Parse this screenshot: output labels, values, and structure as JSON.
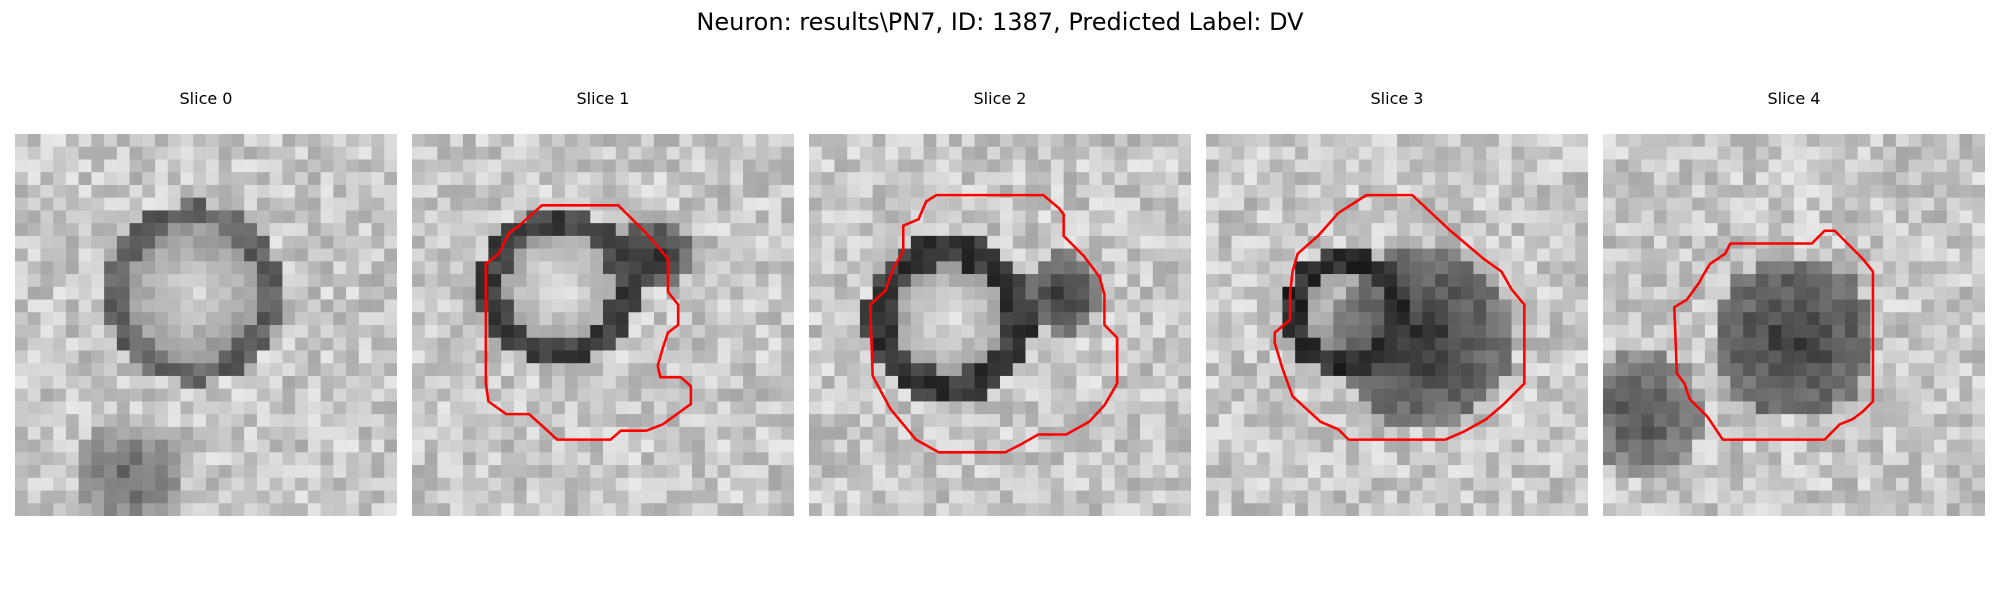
{
  "figure": {
    "title": "Neuron: results\\PN7, ID: 1387, Predicted Label: DV"
  },
  "panels": [
    {
      "title": "Slice 0",
      "has_contour": false,
      "features": [
        {
          "kind": "ring",
          "fill": 0.85,
          "ring": 0.38
        },
        {
          "kind": "blob",
          "level": 0.4
        }
      ]
    },
    {
      "title": "Slice 1",
      "has_contour": true,
      "features": [
        {
          "kind": "ring",
          "fill": 0.9,
          "ring": 0.25
        },
        {
          "kind": "dark",
          "level": 0.15
        }
      ]
    },
    {
      "title": "Slice 2",
      "has_contour": true,
      "features": [
        {
          "kind": "ring",
          "fill": 0.88,
          "ring": 0.22
        },
        {
          "kind": "dark",
          "level": 0.2
        }
      ]
    },
    {
      "title": "Slice 3",
      "has_contour": true,
      "features": [
        {
          "kind": "ring",
          "fill": 0.82,
          "ring": 0.18
        },
        {
          "kind": "dark",
          "level": 0.18
        }
      ]
    },
    {
      "title": "Slice 4",
      "has_contour": true,
      "features": [
        {
          "kind": "blob",
          "level": 0.22
        },
        {
          "kind": "dark",
          "level": 0.28
        }
      ]
    }
  ],
  "colors": {
    "contour": "#ff0000",
    "background": "#ffffff",
    "text": "#000000"
  },
  "image_style": "grayscale pixelated microscopy slices"
}
